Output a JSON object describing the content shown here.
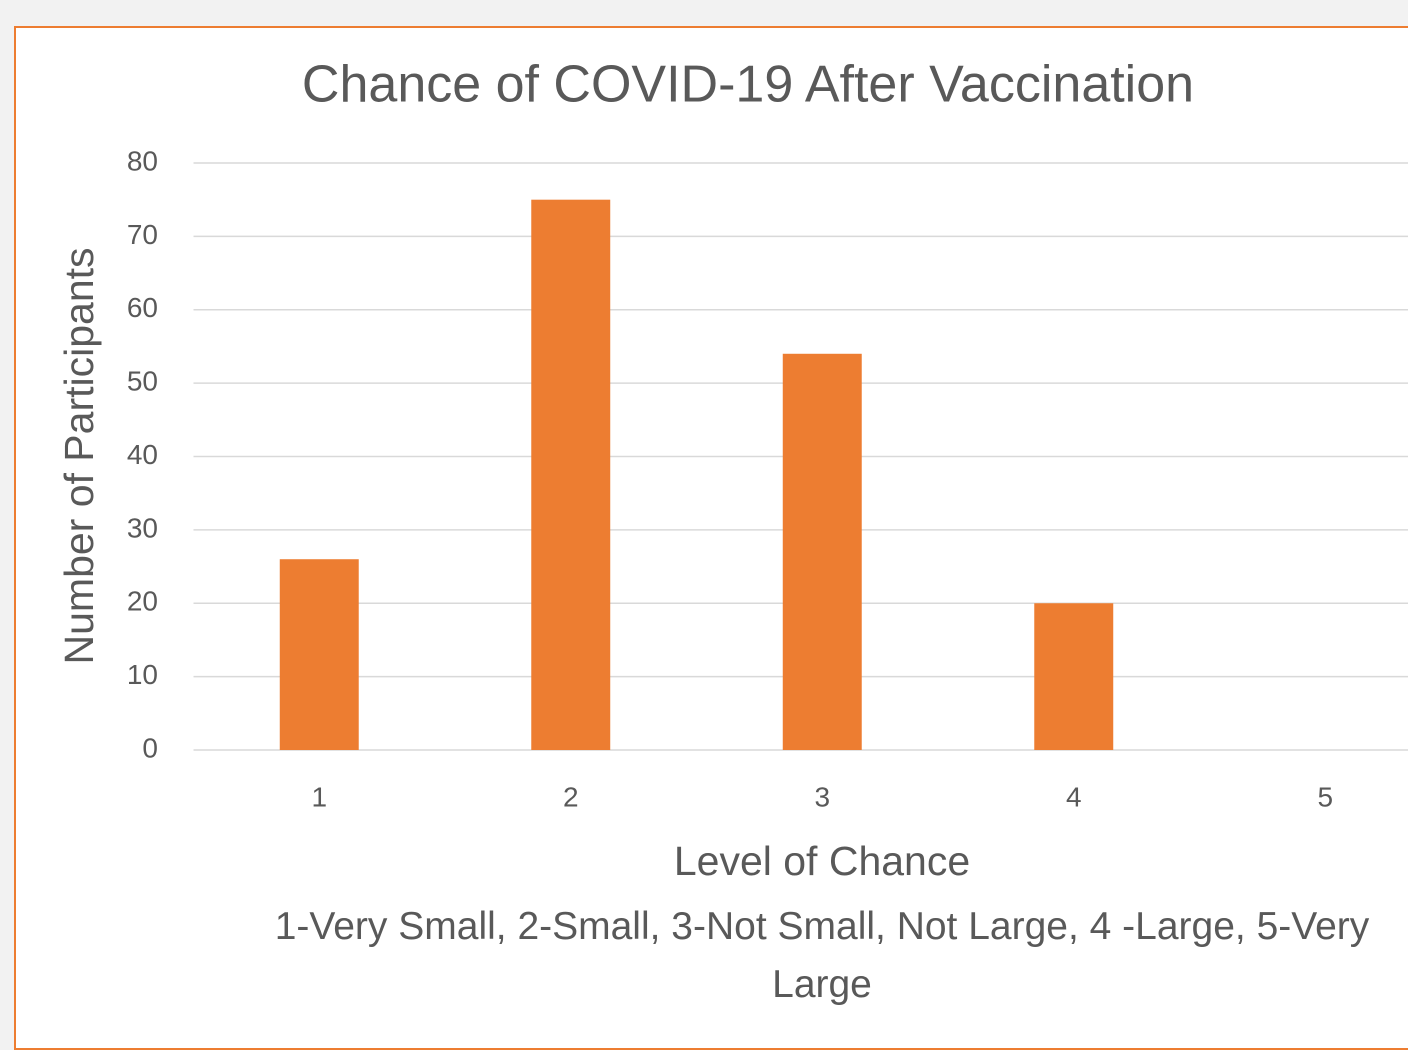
{
  "chart_data": {
    "type": "bar",
    "title": "Chance of COVID-19 After Vaccination",
    "x_label": "Level of Chance",
    "x_note": "1-Very Small, 2-Small, 3-Not Small, Not Large, 4 -Large, 5-Very Large",
    "y_label": "Number of Participants",
    "categories": [
      "1",
      "2",
      "3",
      "4",
      "5"
    ],
    "values": [
      26,
      75,
      54,
      20,
      0
    ],
    "color": "#ed7d31",
    "ylim": [
      0,
      80
    ],
    "yticks": [
      0,
      10,
      20,
      30,
      40,
      50,
      60,
      70,
      80
    ],
    "grid": true
  }
}
